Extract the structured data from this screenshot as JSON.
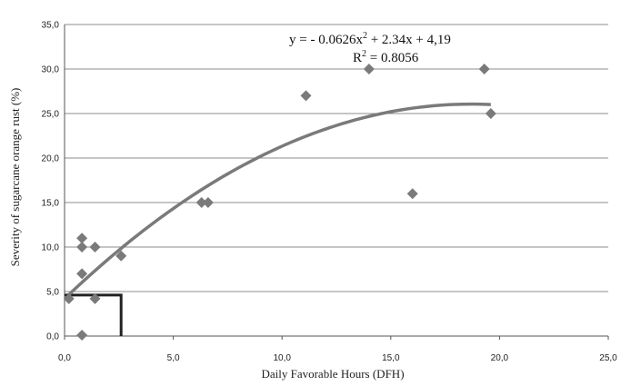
{
  "chart_data": {
    "type": "scatter",
    "title": "",
    "xlabel": "Daily Favorable Hours (DFH)",
    "ylabel": "Severity of sugarcane orange rust (%)",
    "xlim": [
      0,
      25
    ],
    "ylim": [
      0,
      35
    ],
    "x_ticks": [
      "0,0",
      "5,0",
      "10,0",
      "15,0",
      "20,0",
      "25,0"
    ],
    "y_ticks": [
      "0,0",
      "5,0",
      "10,0",
      "15,0",
      "20,0",
      "25,0",
      "30,0",
      "35,0"
    ],
    "grid": "horizontal",
    "points": [
      {
        "x": 0.2,
        "y": 4.2
      },
      {
        "x": 0.8,
        "y": 0.1
      },
      {
        "x": 0.8,
        "y": 7.0
      },
      {
        "x": 0.8,
        "y": 10.0
      },
      {
        "x": 0.8,
        "y": 11.0
      },
      {
        "x": 1.4,
        "y": 4.2
      },
      {
        "x": 1.4,
        "y": 10.0
      },
      {
        "x": 2.6,
        "y": 9.0
      },
      {
        "x": 6.3,
        "y": 15.0
      },
      {
        "x": 6.6,
        "y": 15.0
      },
      {
        "x": 11.1,
        "y": 27.0
      },
      {
        "x": 14.0,
        "y": 30.0
      },
      {
        "x": 16.0,
        "y": 16.0
      },
      {
        "x": 19.3,
        "y": 30.0
      },
      {
        "x": 19.6,
        "y": 25.0
      }
    ],
    "trendline": {
      "type": "polynomial",
      "a": -0.0626,
      "b": 2.34,
      "c": 4.19,
      "x_range": [
        0.2,
        19.6
      ]
    },
    "equation": {
      "prefix": "y = - 0.0626x",
      "sup": "2",
      "suffix": " + 2.34x + 4,19"
    },
    "r_squared": {
      "prefix": "R",
      "sup": "2",
      "suffix": " = 0.8056"
    },
    "threshold": {
      "x": 2.6,
      "y": 4.6
    },
    "colors": {
      "marker": "#7a7a7a",
      "trend": "#7a7a7a",
      "grid": "#8c8c8c",
      "threshold": "#222222"
    }
  }
}
